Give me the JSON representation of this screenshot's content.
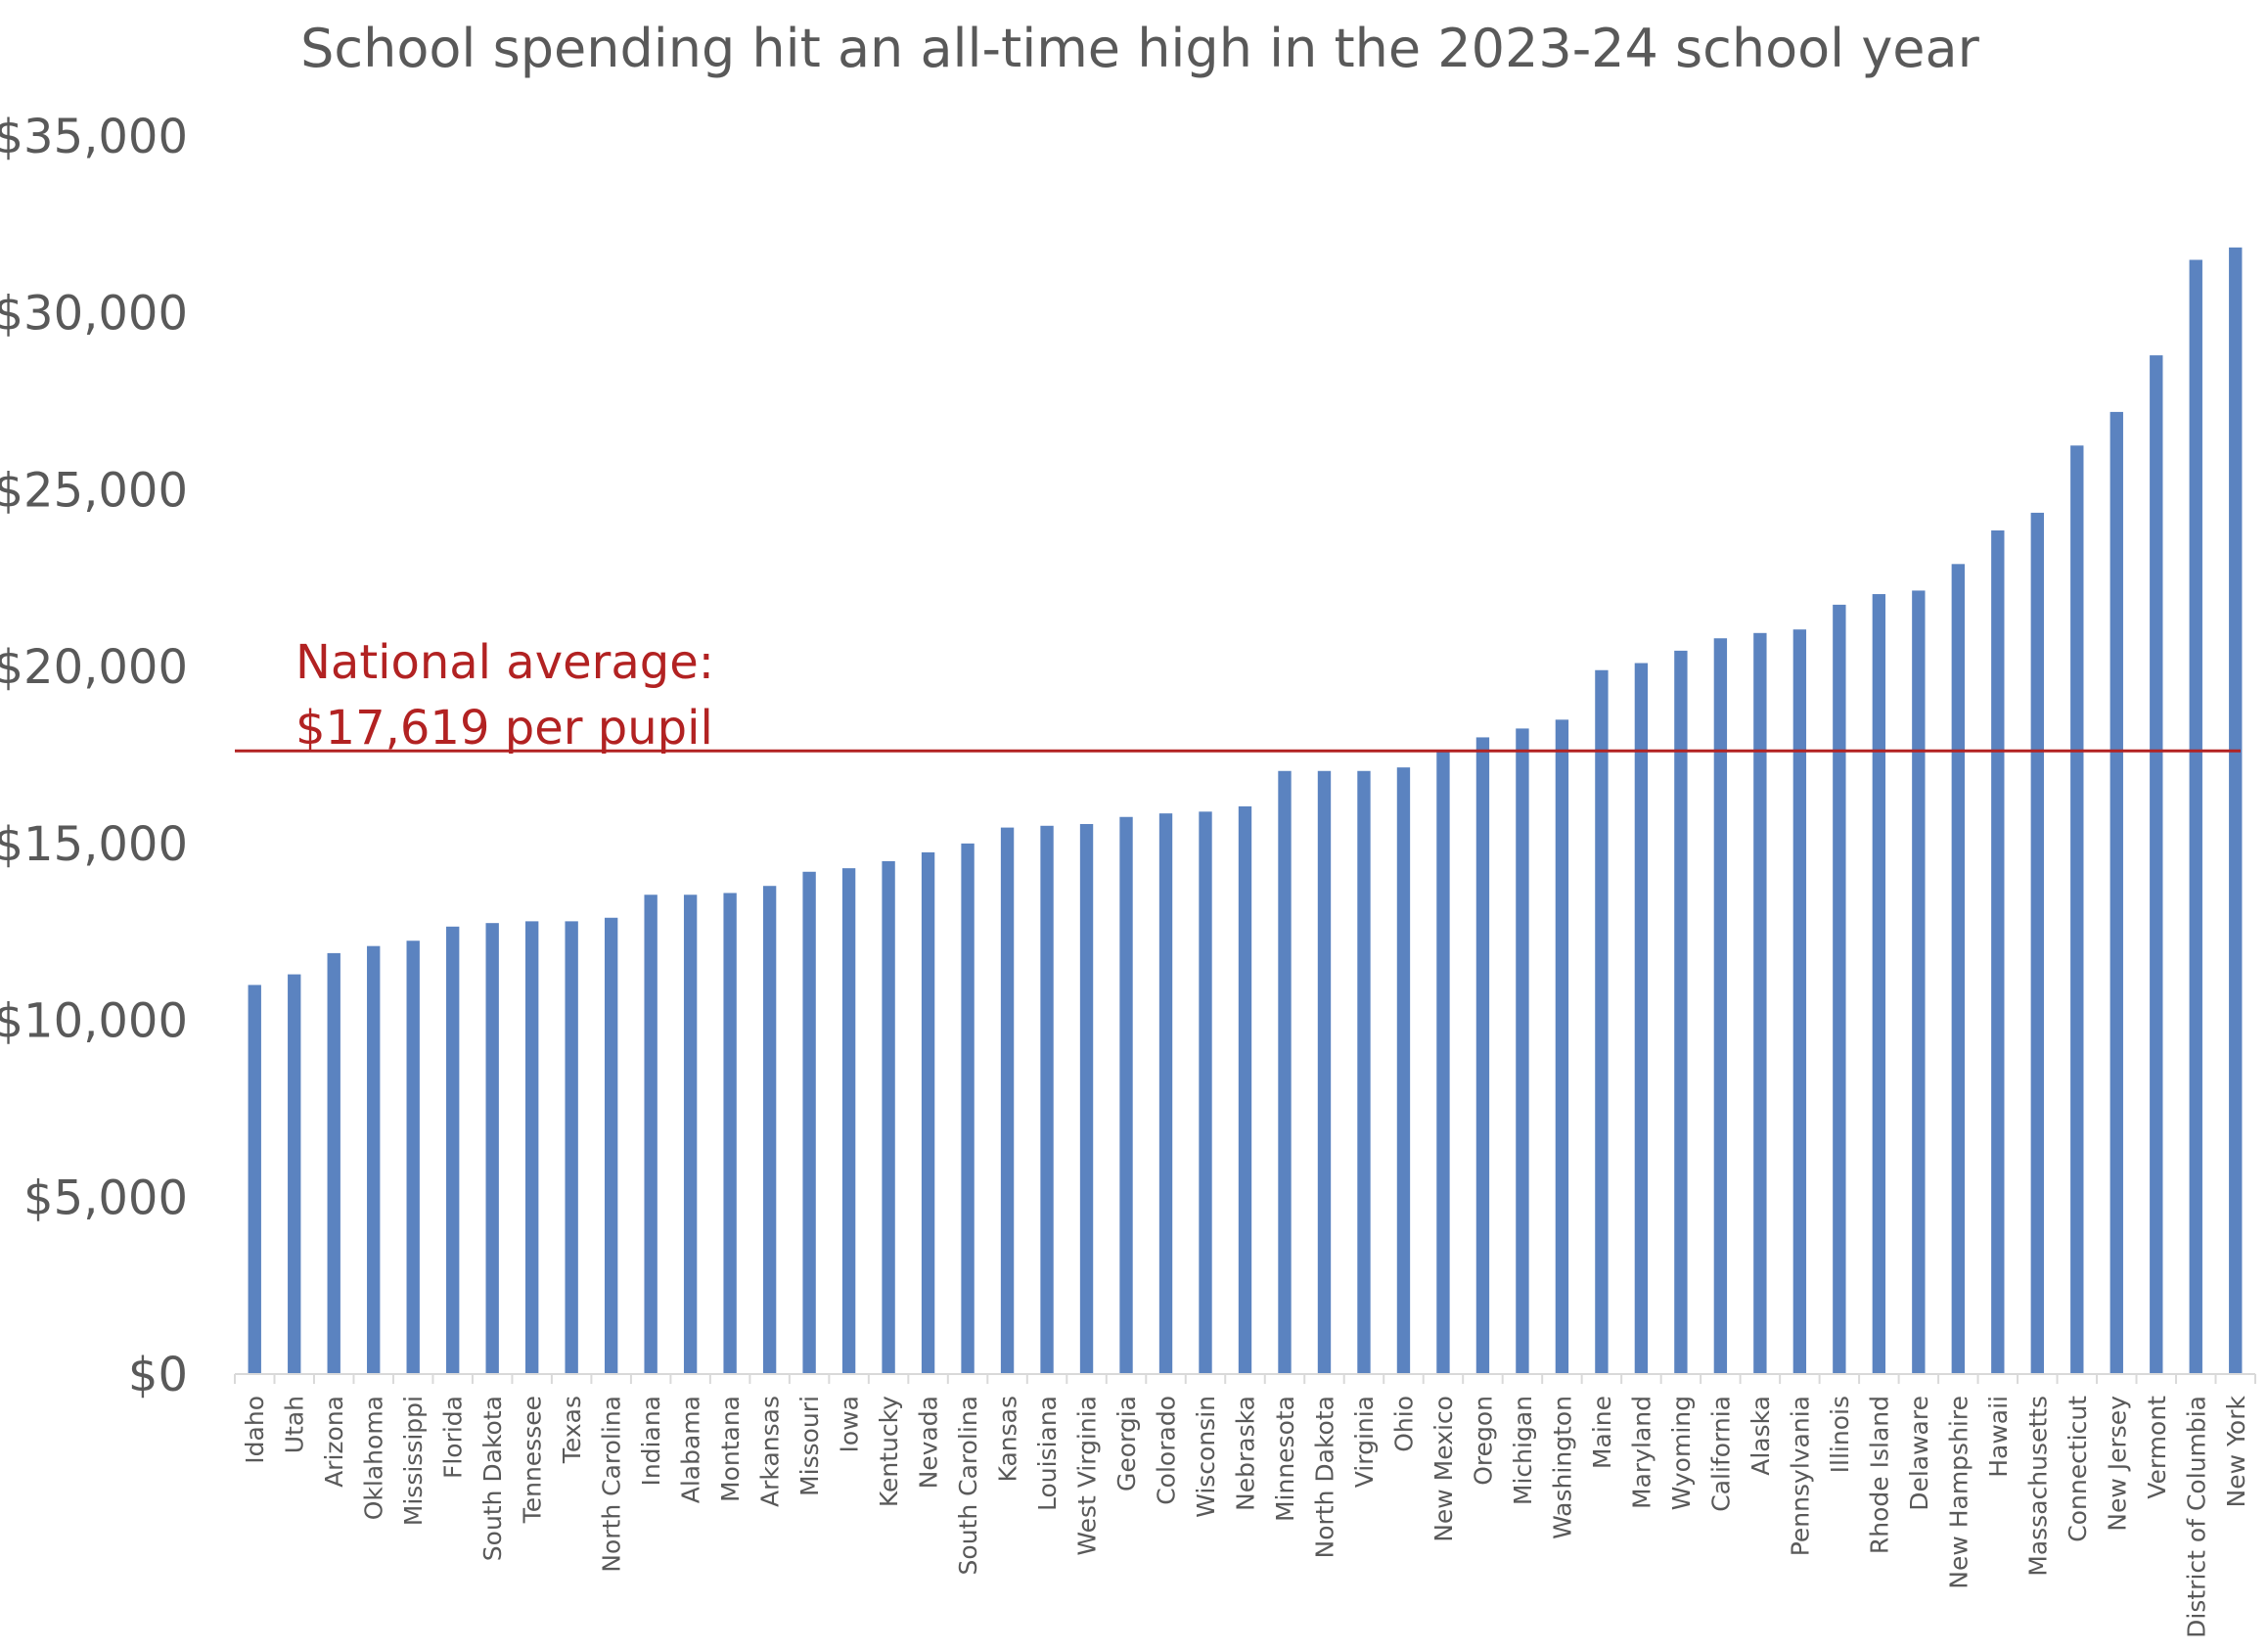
{
  "chart_data": {
    "type": "bar",
    "title": "School spending hit an all-time high in the 2023-24 school year",
    "xlabel": "",
    "ylabel": "",
    "ylim": [
      0,
      35000
    ],
    "yticks": [
      0,
      5000,
      10000,
      15000,
      20000,
      25000,
      30000,
      35000
    ],
    "ytick_labels": [
      "$0",
      "$5,000",
      "$10,000",
      "$15,000",
      "$20,000",
      "$25,000",
      "$30,000",
      "$35,000"
    ],
    "grid": false,
    "bar_color": "#5B83C0",
    "categories": [
      "Idaho",
      "Utah",
      "Arizona",
      "Oklahoma",
      "Mississippi",
      "Florida",
      "South Dakota",
      "Tennessee",
      "Texas",
      "North Carolina",
      "Indiana",
      "Alabama",
      "Montana",
      "Arkansas",
      "Missouri",
      "Iowa",
      "Kentucky",
      "Nevada",
      "South Carolina",
      "Kansas",
      "Louisiana",
      "West Virginia",
      "Georgia",
      "Colorado",
      "Wisconsin",
      "Nebraska",
      "Minnesota",
      "North Dakota",
      "Virginia",
      "Ohio",
      "New Mexico",
      "Oregon",
      "Michigan",
      "Washington",
      "Maine",
      "Maryland",
      "Wyoming",
      "California",
      "Alaska",
      "Pennsylvania",
      "Illinois",
      "Rhode Island",
      "Delaware",
      "New Hampshire",
      "Hawaii",
      "Massachusetts",
      "Connecticut",
      "New Jersey",
      "Vermont",
      "District of Columbia",
      "New York"
    ],
    "values": [
      11000,
      11300,
      11900,
      12100,
      12250,
      12650,
      12750,
      12800,
      12800,
      12900,
      13550,
      13550,
      13600,
      13800,
      14200,
      14300,
      14500,
      14750,
      15000,
      15450,
      15500,
      15550,
      15750,
      15850,
      15900,
      16050,
      17050,
      17050,
      17050,
      17150,
      17600,
      18000,
      18250,
      18500,
      19900,
      20100,
      20450,
      20800,
      20950,
      21050,
      21750,
      22050,
      22150,
      22900,
      23850,
      24350,
      26250,
      27200,
      28800,
      31500,
      31850
    ],
    "reference_line": {
      "value": 17619,
      "label_line1": "National average:",
      "label_line2": "$17,619 per pupil",
      "color": "#B22222"
    }
  }
}
